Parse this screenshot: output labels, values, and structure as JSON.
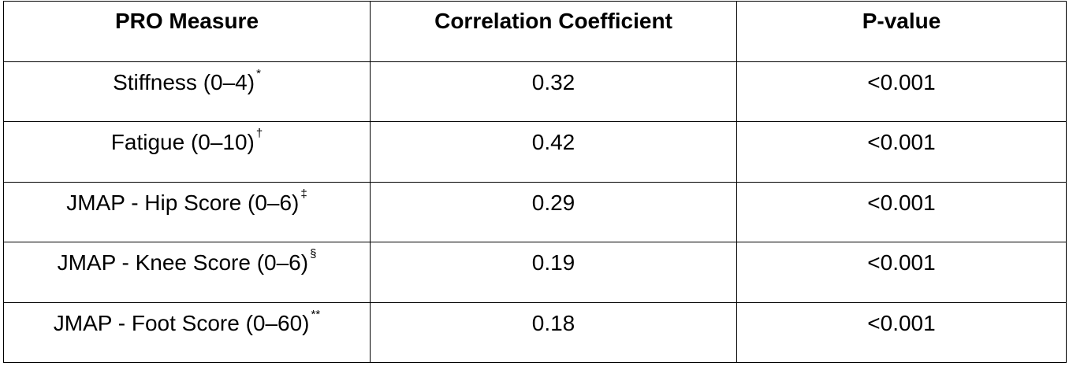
{
  "table": {
    "headers": [
      "PRO Measure",
      "Correlation Coefficient",
      "P-value"
    ],
    "rows": [
      {
        "measure": "Stiffness (0–4)",
        "mark": "*",
        "coefficient": "0.32",
        "p_value": "<0.001"
      },
      {
        "measure": "Fatigue (0–10)",
        "mark": "†",
        "coefficient": "0.42",
        "p_value": "<0.001"
      },
      {
        "measure": "JMAP - Hip Score (0–6)",
        "mark": "‡",
        "coefficient": "0.29",
        "p_value": "<0.001"
      },
      {
        "measure": "JMAP - Knee Score (0–6)",
        "mark": "§",
        "coefficient": "0.19",
        "p_value": "<0.001"
      },
      {
        "measure": "JMAP - Foot Score (0–60)",
        "mark": "**",
        "coefficient": "0.18",
        "p_value": "<0.001"
      }
    ]
  }
}
